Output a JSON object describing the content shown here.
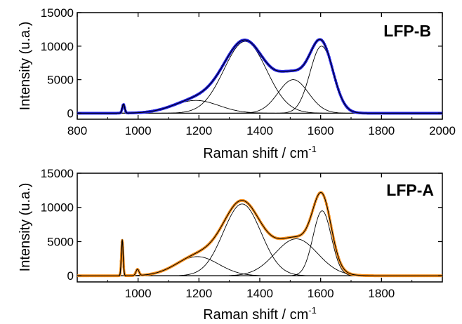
{
  "figure": "two stacked Raman spectra with peak-fit components",
  "chart_data": [
    {
      "type": "line",
      "label": "LFP-B",
      "label_color": "#1f1fe0",
      "data_color": "#1f1fe0",
      "fit_color": "#000000",
      "xlabel": "Raman shift / cm",
      "xlabel_sup": "-1",
      "ylabel": "Intensity (u.a.)",
      "xlim": [
        800,
        2000
      ],
      "ylim": [
        -900,
        15000
      ],
      "xticks": [
        800,
        1000,
        1200,
        1400,
        1600,
        1800,
        2000
      ],
      "yticks": [
        0,
        5000,
        10000,
        15000
      ],
      "xtick_labels": [
        "800",
        "1000",
        "1200",
        "1400",
        "1600",
        "1800",
        "2000"
      ],
      "ytick_labels": [
        "0",
        "5000",
        "10000",
        "15000"
      ],
      "sharp_peak": {
        "center": 952,
        "height": 1300,
        "width": 4
      },
      "components": [
        {
          "center": 1190,
          "height": 1900,
          "sigma": 75
        },
        {
          "center": 1352,
          "height": 10700,
          "sigma": 70
        },
        {
          "center": 1510,
          "height": 5000,
          "sigma": 50
        },
        {
          "center": 1603,
          "height": 10000,
          "sigma": 38
        }
      ],
      "baseline": 0
    },
    {
      "type": "line",
      "label": "LFP-A",
      "label_color": "#f7901e",
      "data_color": "#f7901e",
      "fit_color": "#000000",
      "xlabel": "Raman shift / cm",
      "xlabel_sup": "-1",
      "ylabel": "Intensity (u.a.)",
      "xlim": [
        800,
        2000
      ],
      "ylim": [
        -900,
        15000
      ],
      "xticks": [
        1000,
        1200,
        1400,
        1600,
        1800
      ],
      "yticks": [
        0,
        5000,
        10000,
        15000
      ],
      "xtick_labels": [
        "1000",
        "1200",
        "1400",
        "1600",
        "1800"
      ],
      "ytick_labels": [
        "0",
        "5000",
        "10000",
        "15000"
      ],
      "sharp_peak": {
        "center": 948,
        "height": 5200,
        "width": 3
      },
      "small_peak": {
        "center": 998,
        "height": 900,
        "width": 5
      },
      "components": [
        {
          "center": 1195,
          "height": 2800,
          "sigma": 70
        },
        {
          "center": 1342,
          "height": 10500,
          "sigma": 62
        },
        {
          "center": 1520,
          "height": 5400,
          "sigma": 70
        },
        {
          "center": 1605,
          "height": 9500,
          "sigma": 30
        }
      ],
      "baseline": 0
    }
  ]
}
